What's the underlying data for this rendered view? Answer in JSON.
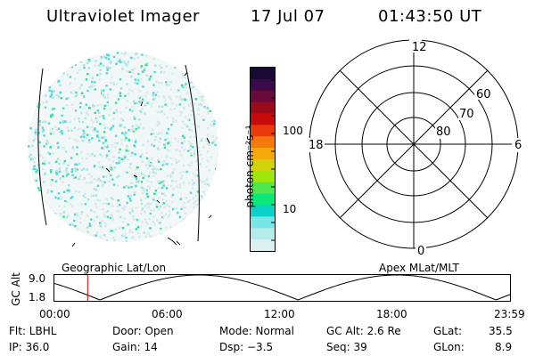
{
  "header": {
    "title": "Ultraviolet Imager",
    "date": "17 Jul 07",
    "time": "01:43:50 UT"
  },
  "colorbar": {
    "unit_label": "photon cm⁻²s⁻¹",
    "ticks": [
      "100",
      "10"
    ],
    "colors": [
      "#1a0a33",
      "#3a0a4a",
      "#6a0a3a",
      "#9a0a1a",
      "#c80a0a",
      "#e83a0a",
      "#f5780a",
      "#f5a80a",
      "#d2d20a",
      "#a0e60a",
      "#50e650",
      "#0ae678",
      "#0ad2c8",
      "#78e6e6",
      "#b4ecec",
      "#dcf0f0"
    ]
  },
  "polar_plot": {
    "mlt_labels": {
      "top": "12",
      "left": "18",
      "right": "6",
      "bottom": "0"
    },
    "lat_labels": [
      "60",
      "70",
      "80"
    ]
  },
  "timeline": {
    "left_label": "Geographic Lat/Lon",
    "right_label": "Apex MLat/MLT",
    "axis_label": "GC Alt",
    "y_ticks": [
      "9.0",
      "1.8"
    ],
    "x_ticks": [
      "00:00",
      "06:00",
      "12:00",
      "18:00",
      "23:59"
    ],
    "current_time_fraction": 0.073
  },
  "info": {
    "flt": "Flt: LBHL",
    "ip": "IP: 36.0",
    "door": "Door: Open",
    "gain": "Gain: 14",
    "mode": "Mode: Normal",
    "dsp": "Dsp:  −3.5",
    "gc_alt": "GC Alt: 2.6 Re",
    "seq": "Seq: 39",
    "glat_label": "GLat:",
    "glat_value": "35.5",
    "glon_label": "GLon:",
    "glon_value": "8.9"
  }
}
